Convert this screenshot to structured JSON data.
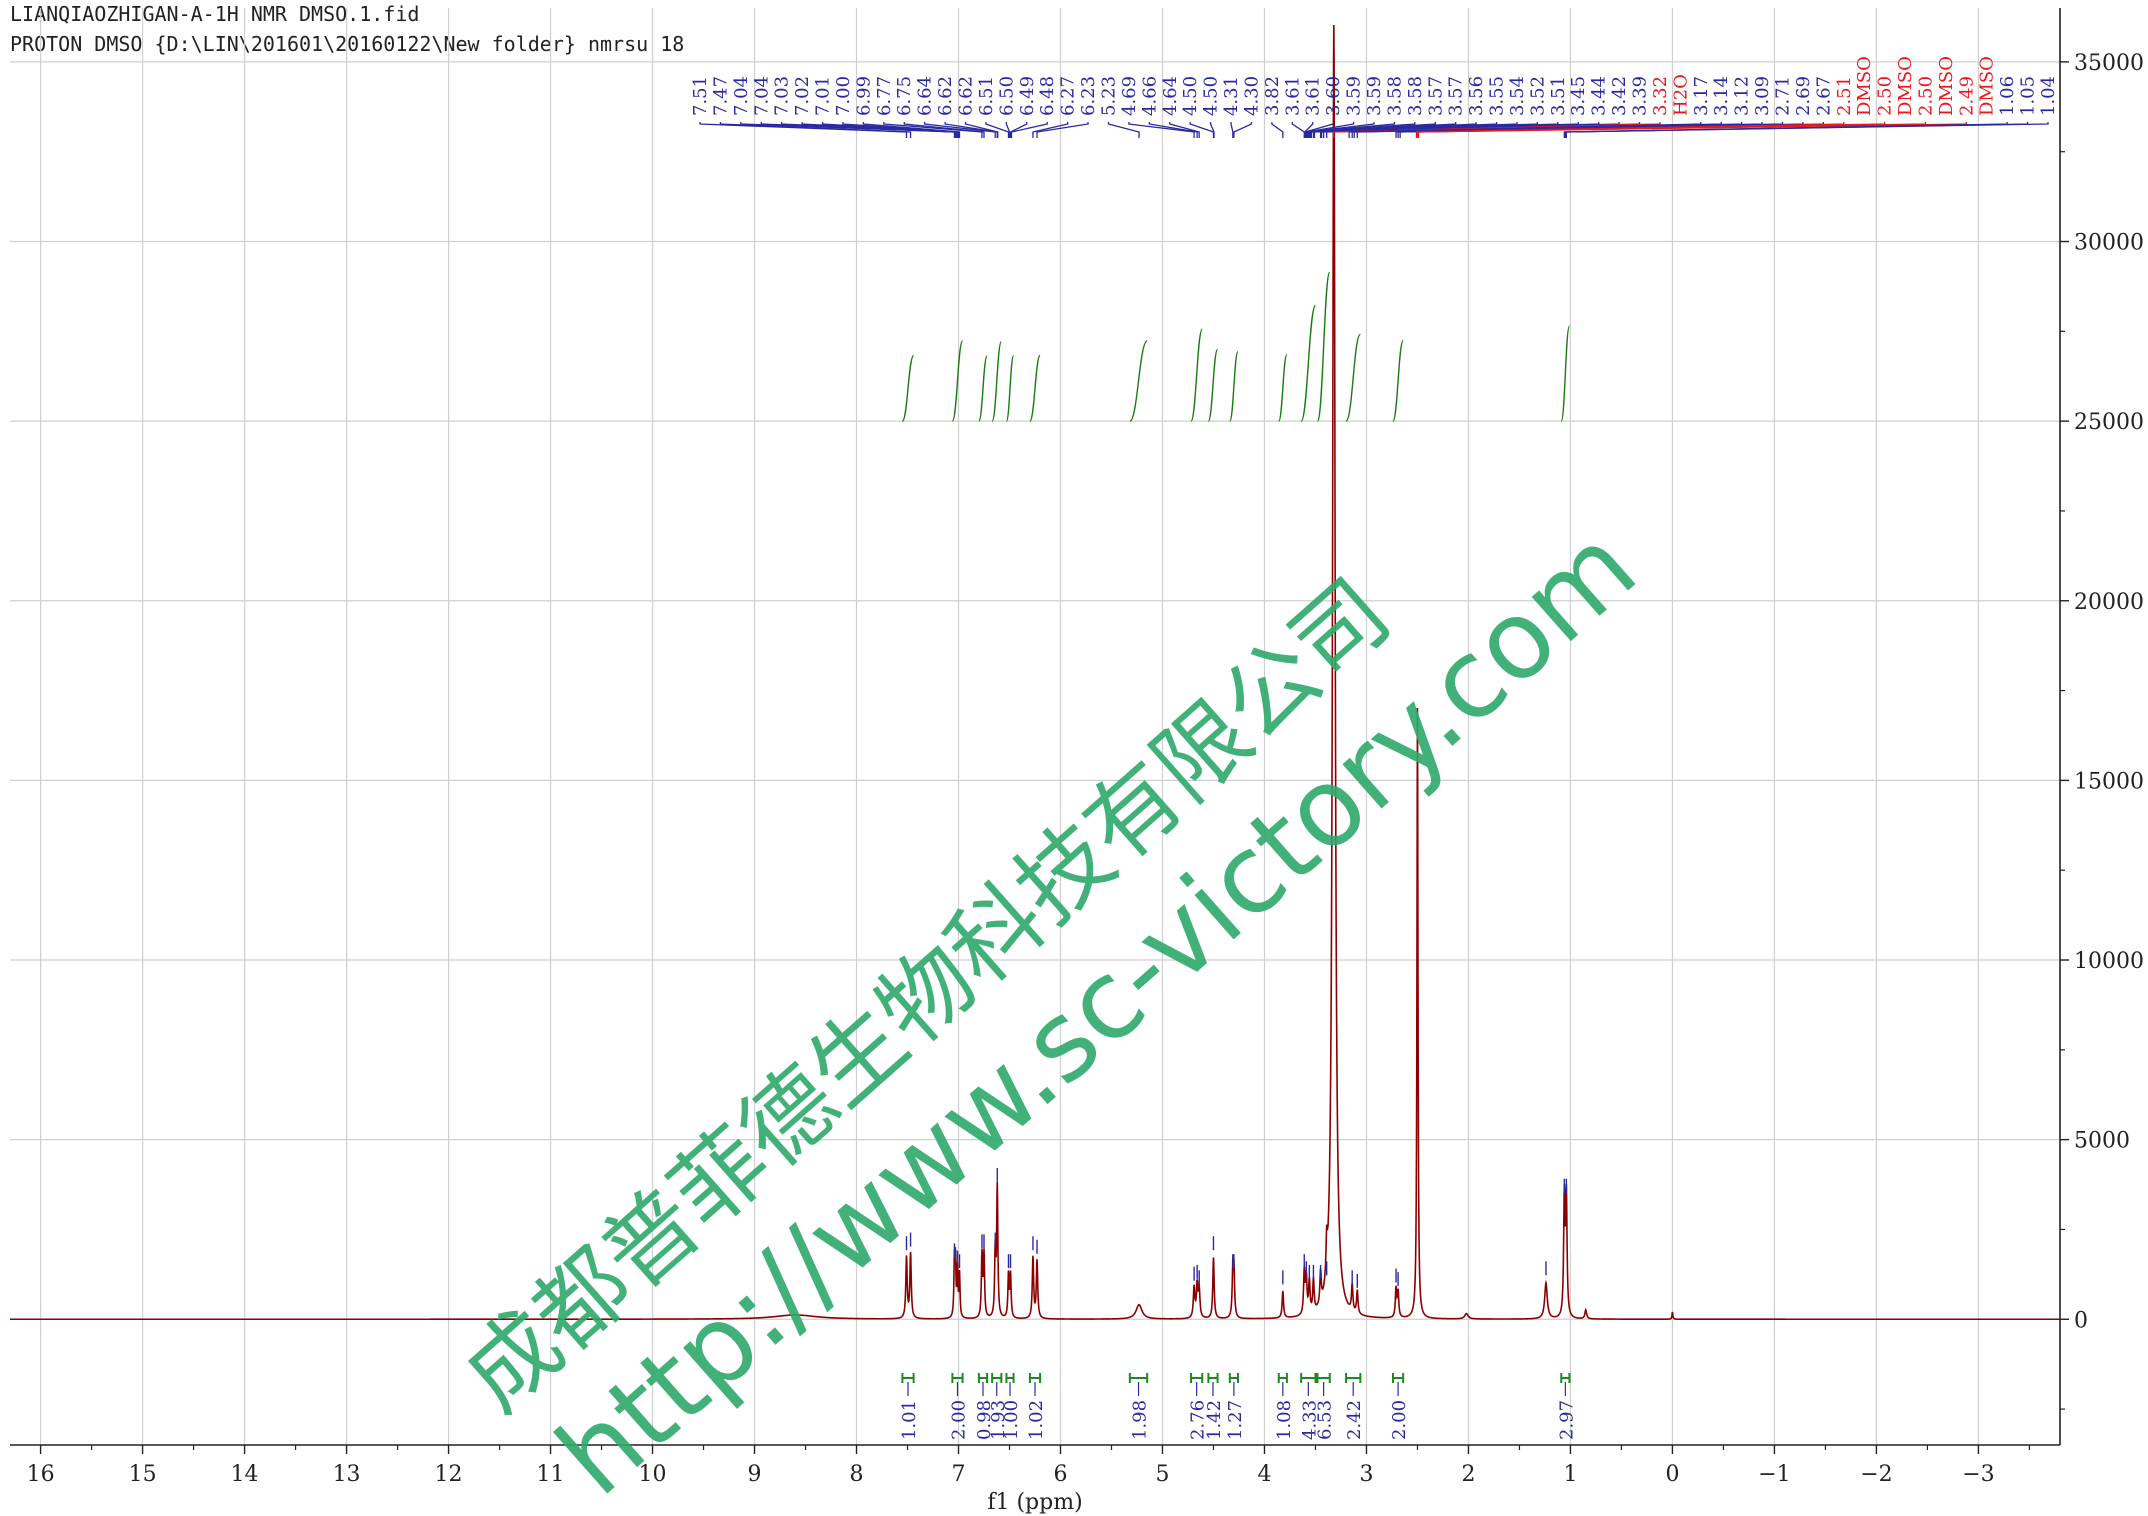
{
  "header": {
    "line1": "LIANQIAOZHIGAN-A-1H NMR DMSO.1.fid",
    "line2": "PROTON DMSO {D:\\LIN\\201601\\20160122\\New folder} nmrsu 18"
  },
  "watermark": {
    "line1": "成都普菲德生物科技有限公司",
    "line2": "http://www.sc-victory.com",
    "color": "#2ea86a"
  },
  "colors": {
    "spectrum": "#8b0000",
    "peak_label": "#2a2aa0",
    "solvent_label": "#e8191c",
    "integral_curve": "#1c7a12",
    "integral_label": "#2a2aa0",
    "integral_bracket": "#1c8a1c",
    "grid": "#cfcfcf",
    "axis": "#222222"
  },
  "chart_data": {
    "type": "line",
    "xlabel": "f1 (ppm)",
    "ylabel": "",
    "xlim": [
      16.3,
      -3.8
    ],
    "ylim": [
      -3500,
      36500
    ],
    "x_reversed": true,
    "grid": true,
    "x_ticks": [
      "16",
      "15",
      "14",
      "13",
      "12",
      "11",
      "10",
      "9",
      "8",
      "7",
      "6",
      "5",
      "4",
      "3",
      "2",
      "1",
      "0",
      "−1",
      "−2",
      "−3"
    ],
    "x_tick_values": [
      16,
      15,
      14,
      13,
      12,
      11,
      10,
      9,
      8,
      7,
      6,
      5,
      4,
      3,
      2,
      1,
      0,
      -1,
      -2,
      -3
    ],
    "y_ticks": [
      "35000",
      "30000",
      "25000",
      "20000",
      "15000",
      "10000",
      "5000",
      "0"
    ],
    "y_tick_values": [
      35000,
      30000,
      25000,
      20000,
      15000,
      10000,
      5000,
      0
    ],
    "peaks": [
      {
        "ppm": 7.51,
        "height": 1700,
        "width": 0.008
      },
      {
        "ppm": 7.47,
        "height": 1800,
        "width": 0.008
      },
      {
        "ppm": 7.04,
        "height": 1500,
        "width": 0.006
      },
      {
        "ppm": 7.03,
        "height": 1400,
        "width": 0.006
      },
      {
        "ppm": 7.01,
        "height": 1300,
        "width": 0.006
      },
      {
        "ppm": 6.99,
        "height": 1200,
        "width": 0.006
      },
      {
        "ppm": 6.77,
        "height": 1750,
        "width": 0.007
      },
      {
        "ppm": 6.75,
        "height": 1750,
        "width": 0.007
      },
      {
        "ppm": 6.64,
        "height": 1800,
        "width": 0.007
      },
      {
        "ppm": 6.62,
        "height": 3600,
        "width": 0.007
      },
      {
        "ppm": 6.51,
        "height": 1200,
        "width": 0.007
      },
      {
        "ppm": 6.49,
        "height": 1200,
        "width": 0.007
      },
      {
        "ppm": 6.27,
        "height": 1700,
        "width": 0.008
      },
      {
        "ppm": 6.23,
        "height": 1600,
        "width": 0.008
      },
      {
        "ppm": 5.23,
        "height": 400,
        "width": 0.035
      },
      {
        "ppm": 4.69,
        "height": 850,
        "width": 0.009
      },
      {
        "ppm": 4.66,
        "height": 900,
        "width": 0.009
      },
      {
        "ppm": 4.64,
        "height": 750,
        "width": 0.009
      },
      {
        "ppm": 4.5,
        "height": 1700,
        "width": 0.008
      },
      {
        "ppm": 4.31,
        "height": 1200,
        "width": 0.008
      },
      {
        "ppm": 4.3,
        "height": 1200,
        "width": 0.008
      },
      {
        "ppm": 3.82,
        "height": 750,
        "width": 0.008
      },
      {
        "ppm": 3.61,
        "height": 1200,
        "width": 0.008
      },
      {
        "ppm": 3.59,
        "height": 1000,
        "width": 0.008
      },
      {
        "ppm": 3.56,
        "height": 900,
        "width": 0.008
      },
      {
        "ppm": 3.52,
        "height": 900,
        "width": 0.008
      },
      {
        "ppm": 3.45,
        "height": 900,
        "width": 0.008
      },
      {
        "ppm": 3.39,
        "height": 1000,
        "width": 0.008
      },
      {
        "ppm": 3.32,
        "height": 36000,
        "width": 0.015
      },
      {
        "ppm": 3.14,
        "height": 750,
        "width": 0.008
      },
      {
        "ppm": 3.09,
        "height": 650,
        "width": 0.008
      },
      {
        "ppm": 2.71,
        "height": 800,
        "width": 0.008
      },
      {
        "ppm": 2.69,
        "height": 700,
        "width": 0.008
      },
      {
        "ppm": 2.5,
        "height": 17000,
        "width": 0.006
      },
      {
        "ppm": 2.02,
        "height": 150,
        "width": 0.02
      },
      {
        "ppm": 1.24,
        "height": 1000,
        "width": 0.015
      },
      {
        "ppm": 1.06,
        "height": 3300,
        "width": 0.008
      },
      {
        "ppm": 1.04,
        "height": 3300,
        "width": 0.008
      },
      {
        "ppm": 0.85,
        "height": 250,
        "width": 0.01
      },
      {
        "ppm": 0.0,
        "height": 200,
        "width": 0.005
      }
    ],
    "broad_humps": [
      {
        "ppm": 8.6,
        "height": 120,
        "width": 0.25
      }
    ],
    "peak_labels": [
      {
        "label": "7.51",
        "ppm": 7.51
      },
      {
        "label": "7.47",
        "ppm": 7.47
      },
      {
        "label": "7.04",
        "ppm": 7.04
      },
      {
        "label": "7.04",
        "ppm": 7.035
      },
      {
        "label": "7.03",
        "ppm": 7.03
      },
      {
        "label": "7.02",
        "ppm": 7.02
      },
      {
        "label": "7.01",
        "ppm": 7.01
      },
      {
        "label": "7.00",
        "ppm": 7.0
      },
      {
        "label": "6.99",
        "ppm": 6.99
      },
      {
        "label": "6.77",
        "ppm": 6.77
      },
      {
        "label": "6.75",
        "ppm": 6.75
      },
      {
        "label": "6.64",
        "ppm": 6.64
      },
      {
        "label": "6.62",
        "ppm": 6.62
      },
      {
        "label": "6.62",
        "ppm": 6.615
      },
      {
        "label": "6.51",
        "ppm": 6.51
      },
      {
        "label": "6.50",
        "ppm": 6.5
      },
      {
        "label": "6.49",
        "ppm": 6.49
      },
      {
        "label": "6.48",
        "ppm": 6.48
      },
      {
        "label": "6.27",
        "ppm": 6.27
      },
      {
        "label": "6.23",
        "ppm": 6.23
      },
      {
        "label": "5.23",
        "ppm": 5.23
      },
      {
        "label": "4.69",
        "ppm": 4.69
      },
      {
        "label": "4.66",
        "ppm": 4.66
      },
      {
        "label": "4.64",
        "ppm": 4.64
      },
      {
        "label": "4.50",
        "ppm": 4.5
      },
      {
        "label": "4.50",
        "ppm": 4.495
      },
      {
        "label": "4.31",
        "ppm": 4.31
      },
      {
        "label": "4.30",
        "ppm": 4.3
      },
      {
        "label": "3.82",
        "ppm": 3.82
      },
      {
        "label": "3.61",
        "ppm": 3.61
      },
      {
        "label": "3.61",
        "ppm": 3.605
      },
      {
        "label": "3.60",
        "ppm": 3.6
      },
      {
        "label": "3.59",
        "ppm": 3.59
      },
      {
        "label": "3.59",
        "ppm": 3.585
      },
      {
        "label": "3.58",
        "ppm": 3.58
      },
      {
        "label": "3.58",
        "ppm": 3.575
      },
      {
        "label": "3.57",
        "ppm": 3.57
      },
      {
        "label": "3.57",
        "ppm": 3.565
      },
      {
        "label": "3.56",
        "ppm": 3.56
      },
      {
        "label": "3.55",
        "ppm": 3.55
      },
      {
        "label": "3.54",
        "ppm": 3.54
      },
      {
        "label": "3.52",
        "ppm": 3.52
      },
      {
        "label": "3.51",
        "ppm": 3.51
      },
      {
        "label": "3.45",
        "ppm": 3.45
      },
      {
        "label": "3.44",
        "ppm": 3.44
      },
      {
        "label": "3.42",
        "ppm": 3.42
      },
      {
        "label": "3.39",
        "ppm": 3.39
      },
      {
        "label": "3.32",
        "ppm": 3.32,
        "solvent": true
      },
      {
        "label": "H2O",
        "ppm": 3.32,
        "solvent": true
      },
      {
        "label": "3.17",
        "ppm": 3.17
      },
      {
        "label": "3.14",
        "ppm": 3.14
      },
      {
        "label": "3.12",
        "ppm": 3.12
      },
      {
        "label": "3.09",
        "ppm": 3.09
      },
      {
        "label": "2.71",
        "ppm": 2.71
      },
      {
        "label": "2.69",
        "ppm": 2.69
      },
      {
        "label": "2.67",
        "ppm": 2.67
      },
      {
        "label": "2.51",
        "ppm": 2.51,
        "solvent": true
      },
      {
        "label": "DMSO",
        "ppm": 2.51,
        "solvent": true
      },
      {
        "label": "2.50",
        "ppm": 2.5,
        "solvent": true
      },
      {
        "label": "DMSO",
        "ppm": 2.5,
        "solvent": true
      },
      {
        "label": "2.50",
        "ppm": 2.495,
        "solvent": true
      },
      {
        "label": "DMSO",
        "ppm": 2.495,
        "solvent": true
      },
      {
        "label": "2.49",
        "ppm": 2.49,
        "solvent": true
      },
      {
        "label": "DMSO",
        "ppm": 2.49,
        "solvent": true
      },
      {
        "label": "1.06",
        "ppm": 1.06
      },
      {
        "label": "1.05",
        "ppm": 1.05
      },
      {
        "label": "1.04",
        "ppm": 1.04
      }
    ],
    "integrals": [
      {
        "value": "1.01",
        "from": 7.55,
        "to": 7.44
      },
      {
        "value": "2.00",
        "from": 7.06,
        "to": 6.96
      },
      {
        "value": "0.98",
        "from": 6.8,
        "to": 6.72
      },
      {
        "value": "1.93",
        "from": 6.67,
        "to": 6.58
      },
      {
        "value": "1.00",
        "from": 6.53,
        "to": 6.46
      },
      {
        "value": "1.02",
        "from": 6.3,
        "to": 6.2
      },
      {
        "value": "1.98",
        "from": 5.32,
        "to": 5.15
      },
      {
        "value": "2.76",
        "from": 4.72,
        "to": 4.61
      },
      {
        "value": "1.42",
        "from": 4.55,
        "to": 4.46
      },
      {
        "value": "1.27",
        "from": 4.34,
        "to": 4.26
      },
      {
        "value": "1.08",
        "from": 3.86,
        "to": 3.78
      },
      {
        "value": "4.33",
        "from": 3.64,
        "to": 3.5
      },
      {
        "value": "6.53",
        "from": 3.48,
        "to": 3.36
      },
      {
        "value": "2.42",
        "from": 3.2,
        "to": 3.06
      },
      {
        "value": "2.00",
        "from": 2.74,
        "to": 2.64
      },
      {
        "value": "2.97",
        "from": 1.09,
        "to": 1.01
      }
    ]
  }
}
